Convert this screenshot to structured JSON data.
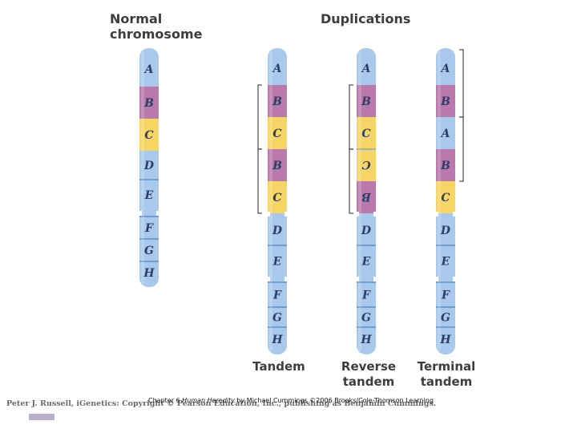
{
  "headings": {
    "normal": [
      "Normal",
      "chromosome"
    ],
    "duplications": "Duplications"
  },
  "subtitles": {
    "tandem": [
      "Tandem"
    ],
    "reverse": [
      "Reverse",
      "tandem"
    ],
    "terminal": [
      "Terminal",
      "tandem"
    ]
  },
  "colors": {
    "blue": "#a8c9ec",
    "purple": "#b979ad",
    "yellow": "#f6d565",
    "band_line": "#5b8fc7",
    "bracket": "#555555",
    "label": "#2c3e66"
  },
  "chromosomes": [
    {
      "id": "normal",
      "segments": [
        {
          "label": "A",
          "color": "blue"
        },
        {
          "label": "B",
          "color": "purple"
        },
        {
          "label": "C",
          "color": "yellow"
        },
        {
          "label": "D",
          "color": "blue"
        },
        {
          "label": "E",
          "color": "blue"
        },
        {
          "label": "F",
          "color": "blue"
        },
        {
          "label": "G",
          "color": "blue"
        },
        {
          "label": "H",
          "color": "blue"
        }
      ]
    },
    {
      "id": "tandem",
      "segments": [
        {
          "label": "A",
          "color": "blue"
        },
        {
          "label": "B",
          "color": "purple"
        },
        {
          "label": "C",
          "color": "yellow"
        },
        {
          "label": "B",
          "color": "purple"
        },
        {
          "label": "C",
          "color": "yellow"
        },
        {
          "label": "D",
          "color": "blue"
        },
        {
          "label": "E",
          "color": "blue"
        },
        {
          "label": "F",
          "color": "blue"
        },
        {
          "label": "G",
          "color": "blue"
        },
        {
          "label": "H",
          "color": "blue"
        }
      ]
    },
    {
      "id": "reverse",
      "segments": [
        {
          "label": "A",
          "color": "blue"
        },
        {
          "label": "B",
          "color": "purple"
        },
        {
          "label": "C",
          "color": "yellow"
        },
        {
          "label": "C",
          "color": "yellow",
          "flipped": true
        },
        {
          "label": "B",
          "color": "purple",
          "flipped": true
        },
        {
          "label": "D",
          "color": "blue"
        },
        {
          "label": "E",
          "color": "blue"
        },
        {
          "label": "F",
          "color": "blue"
        },
        {
          "label": "G",
          "color": "blue"
        },
        {
          "label": "H",
          "color": "blue"
        }
      ]
    },
    {
      "id": "terminal",
      "segments": [
        {
          "label": "A",
          "color": "blue"
        },
        {
          "label": "B",
          "color": "purple"
        },
        {
          "label": "A",
          "color": "blue"
        },
        {
          "label": "B",
          "color": "purple"
        },
        {
          "label": "C",
          "color": "yellow"
        },
        {
          "label": "D",
          "color": "blue"
        },
        {
          "label": "E",
          "color": "blue"
        },
        {
          "label": "F",
          "color": "blue"
        },
        {
          "label": "G",
          "color": "blue"
        },
        {
          "label": "H",
          "color": "blue"
        }
      ]
    }
  ],
  "footer": {
    "credit": "Peter J. Russell, iGenetics: Copyright © Pearson Education, Inc., publishing as Benjamin Cummings.",
    "caption_prefix": "Chapter 6 ",
    "caption_title": "Human Heredity",
    "caption_suffix": " by Michael Cummings ©2006 Brooks/Cole-Thomson Learning"
  }
}
